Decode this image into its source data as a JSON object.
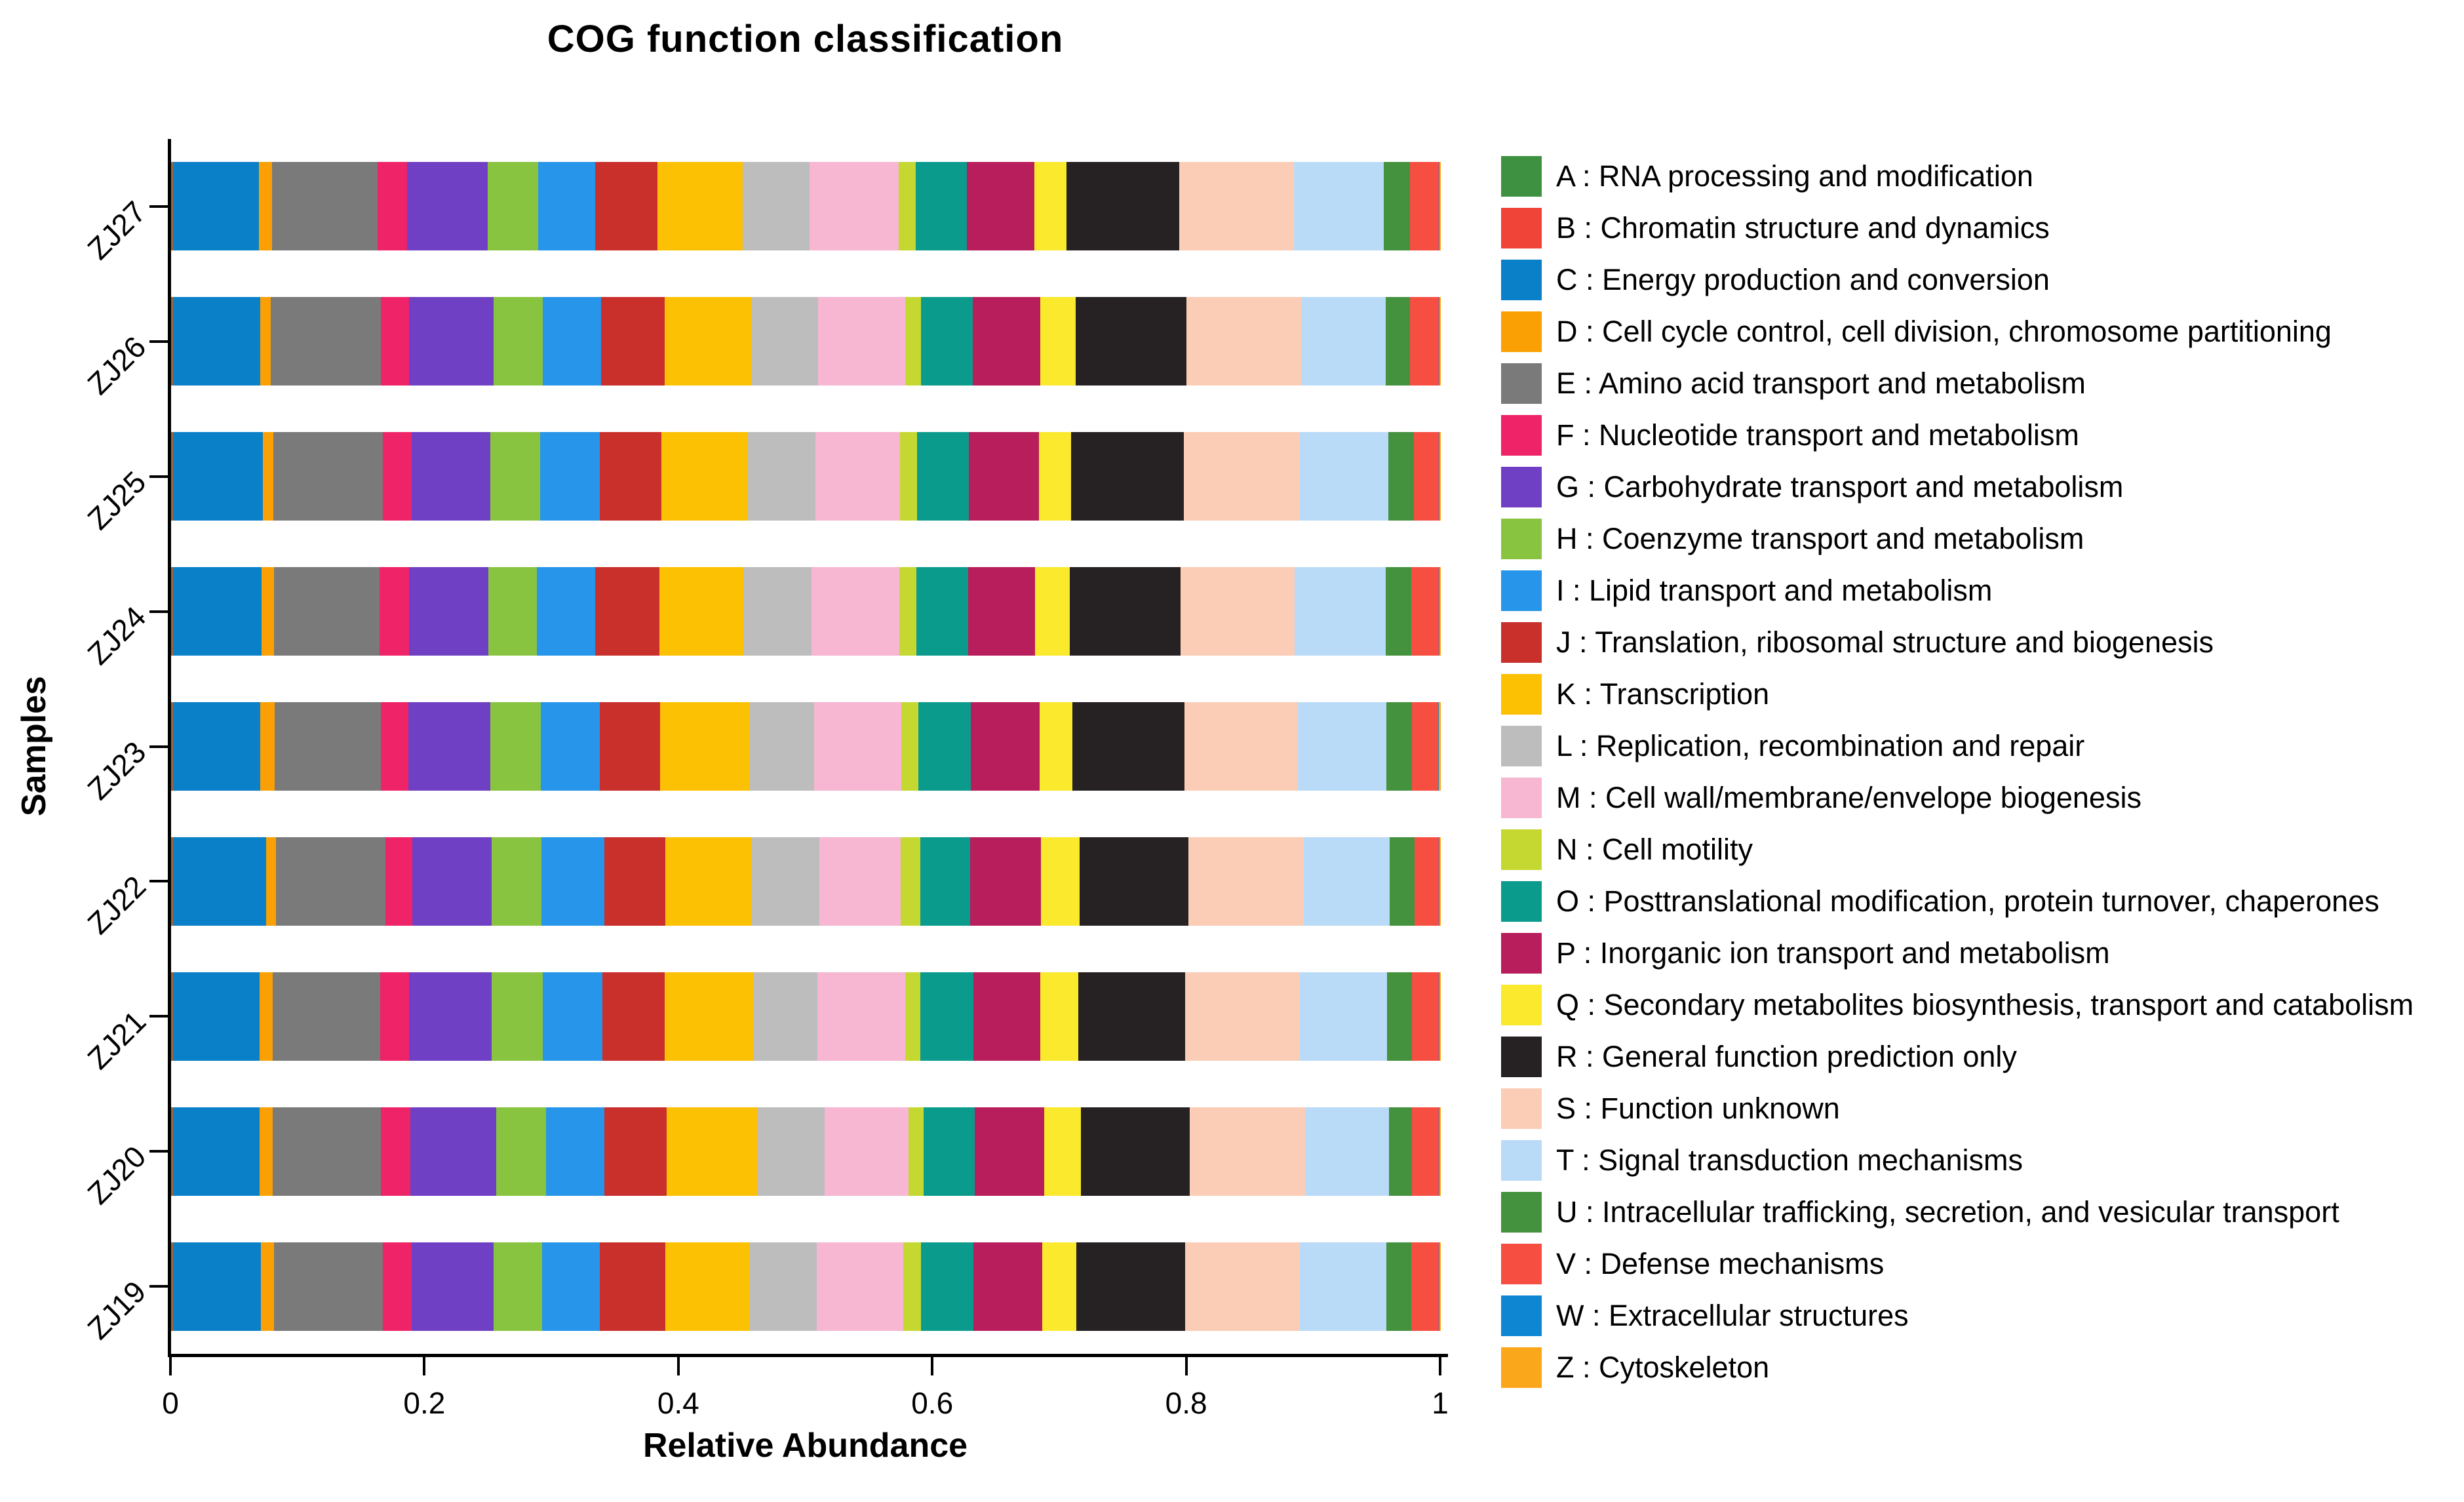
{
  "title": "COG function classification",
  "x_axis": {
    "label": "Relative Abundance",
    "range": [
      0,
      1
    ],
    "ticks": [
      {
        "label": "0",
        "value": 0.0
      },
      {
        "label": "0.2",
        "value": 0.2
      },
      {
        "label": "0.4",
        "value": 0.4
      },
      {
        "label": "0.6",
        "value": 0.6
      },
      {
        "label": "0.8",
        "value": 0.8
      },
      {
        "label": "1",
        "value": 1.0
      }
    ]
  },
  "y_axis": {
    "label": "Samples"
  },
  "categories": [
    {
      "code": "A",
      "name": "RNA processing and modification",
      "legend_label": "A : RNA processing and modification",
      "color": "#3f9142"
    },
    {
      "code": "B",
      "name": "Chromatin structure and dynamics",
      "legend_label": "B : Chromatin structure and dynamics",
      "color": "#f04438"
    },
    {
      "code": "C",
      "name": "Energy production and conversion",
      "legend_label": "C : Energy production and conversion",
      "color": "#0a80c9"
    },
    {
      "code": "D",
      "name": "Cell cycle control, cell division, chromosome partitioning",
      "legend_label": "D : Cell cycle control, cell division, chromosome partitioning",
      "color": "#faa005"
    },
    {
      "code": "E",
      "name": "Amino acid transport and metabolism",
      "legend_label": "E : Amino acid transport and metabolism",
      "color": "#7a7a7a"
    },
    {
      "code": "F",
      "name": "Nucleotide transport and metabolism",
      "legend_label": "F : Nucleotide transport and metabolism",
      "color": "#ee2368"
    },
    {
      "code": "G",
      "name": "Carbohydrate transport and metabolism",
      "legend_label": "G : Carbohydrate transport and metabolism",
      "color": "#7040c4"
    },
    {
      "code": "H",
      "name": "Coenzyme transport and metabolism",
      "legend_label": "H : Coenzyme transport and metabolism",
      "color": "#89c440"
    },
    {
      "code": "I",
      "name": "Lipid transport and metabolism",
      "legend_label": "I : Lipid transport and metabolism",
      "color": "#2795e9"
    },
    {
      "code": "J",
      "name": "Translation, ribosomal structure and biogenesis",
      "legend_label": "J : Translation, ribosomal structure and biogenesis",
      "color": "#c9302c"
    },
    {
      "code": "K",
      "name": "Transcription",
      "legend_label": "K : Transcription",
      "color": "#fdc104"
    },
    {
      "code": "L",
      "name": "Replication, recombination and repair",
      "legend_label": "L : Replication, recombination and repair",
      "color": "#bdbdbd"
    },
    {
      "code": "M",
      "name": "Cell wall/membrane/envelope biogenesis",
      "legend_label": "M : Cell wall/membrane/envelope biogenesis",
      "color": "#f7b6d2"
    },
    {
      "code": "N",
      "name": "Cell motility",
      "legend_label": "N : Cell motility",
      "color": "#c5d831"
    },
    {
      "code": "O",
      "name": "Posttranslational modification, protein turnover, chaperones",
      "legend_label": "O : Posttranslational modification, protein turnover, chaperones",
      "color": "#0b9b8d"
    },
    {
      "code": "P",
      "name": "Inorganic ion transport and metabolism",
      "legend_label": "P : Inorganic ion transport and metabolism",
      "color": "#b81e5b"
    },
    {
      "code": "Q",
      "name": "Secondary metabolites biosynthesis, transport and catabolism",
      "legend_label": "Q : Secondary metabolites biosynthesis, transport and catabolism",
      "color": "#fbe92e"
    },
    {
      "code": "R",
      "name": "General function prediction only",
      "legend_label": "R : General function prediction only",
      "color": "#262223"
    },
    {
      "code": "S",
      "name": "Function unknown",
      "legend_label": "S : Function unknown",
      "color": "#fccdb6"
    },
    {
      "code": "T",
      "name": "Signal transduction mechanisms",
      "legend_label": "T : Signal transduction mechanisms",
      "color": "#badbf7"
    },
    {
      "code": "U",
      "name": "Intracellular trafficking, secretion, and vesicular transport",
      "legend_label": "U : Intracellular trafficking, secretion, and vesicular transport",
      "color": "#44913e"
    },
    {
      "code": "V",
      "name": "Defense mechanisms",
      "legend_label": "V : Defense mechanisms",
      "color": "#f74e42"
    },
    {
      "code": "W",
      "name": "Extracellular structures",
      "legend_label": "W : Extracellular structures",
      "color": "#0f86d2"
    },
    {
      "code": "Z",
      "name": "Cytoskeleton",
      "legend_label": "Z : Cytoskeleton",
      "color": "#faa71b"
    }
  ],
  "chart_data": {
    "type": "bar",
    "stacked": true,
    "orientation": "horizontal",
    "title": "COG function classification",
    "xlabel": "Relative Abundance",
    "ylabel": "Samples",
    "xlim": [
      0,
      1
    ],
    "grid": false,
    "legend_position": "right",
    "samples": [
      "ZJ27",
      "ZJ26",
      "ZJ25",
      "ZJ24",
      "ZJ23",
      "ZJ22",
      "ZJ21",
      "ZJ20",
      "ZJ19"
    ],
    "series": [
      {
        "code": "A",
        "values": [
          0.001,
          0.001,
          0.001,
          0.001,
          0.001,
          0.001,
          0.001,
          0.001,
          0.001
        ]
      },
      {
        "code": "B",
        "values": [
          0.0005,
          0.0005,
          0.0005,
          0.0005,
          0.0005,
          0.0005,
          0.0005,
          0.0005,
          0.0005
        ]
      },
      {
        "code": "C",
        "values": [
          0.0677,
          0.0687,
          0.0708,
          0.0697,
          0.0687,
          0.0734,
          0.0682,
          0.0682,
          0.0692
        ]
      },
      {
        "code": "D",
        "values": [
          0.0103,
          0.0083,
          0.0082,
          0.0098,
          0.0114,
          0.0077,
          0.0103,
          0.0103,
          0.0103
        ]
      },
      {
        "code": "E",
        "values": [
          0.0831,
          0.0867,
          0.0862,
          0.0832,
          0.0836,
          0.0862,
          0.0847,
          0.0852,
          0.0857
        ]
      },
      {
        "code": "F",
        "values": [
          0.0233,
          0.0222,
          0.0228,
          0.0232,
          0.0217,
          0.0212,
          0.0227,
          0.0232,
          0.0228
        ]
      },
      {
        "code": "G",
        "values": [
          0.0635,
          0.0666,
          0.0619,
          0.0625,
          0.0645,
          0.0624,
          0.065,
          0.0676,
          0.0645
        ]
      },
      {
        "code": "H",
        "values": [
          0.0397,
          0.0387,
          0.0393,
          0.0382,
          0.0393,
          0.0393,
          0.0403,
          0.0393,
          0.0382
        ]
      },
      {
        "code": "I",
        "values": [
          0.0449,
          0.046,
          0.0469,
          0.0459,
          0.0464,
          0.0496,
          0.047,
          0.046,
          0.0454
        ]
      },
      {
        "code": "J",
        "values": [
          0.0491,
          0.0501,
          0.0486,
          0.0506,
          0.0475,
          0.048,
          0.0491,
          0.049,
          0.0517
        ]
      },
      {
        "code": "K",
        "values": [
          0.0671,
          0.0686,
          0.0681,
          0.0661,
          0.0702,
          0.0681,
          0.0696,
          0.0712,
          0.066
        ]
      },
      {
        "code": "L",
        "values": [
          0.0527,
          0.0522,
          0.0532,
          0.0537,
          0.0512,
          0.0532,
          0.0506,
          0.0532,
          0.0532
        ]
      },
      {
        "code": "M",
        "values": [
          0.0697,
          0.0686,
          0.0661,
          0.0687,
          0.0686,
          0.064,
          0.0692,
          0.0661,
          0.0681
        ]
      },
      {
        "code": "N",
        "values": [
          0.0134,
          0.0124,
          0.0134,
          0.0139,
          0.0134,
          0.015,
          0.0119,
          0.0119,
          0.014
        ]
      },
      {
        "code": "O",
        "values": [
          0.0403,
          0.0408,
          0.0408,
          0.0403,
          0.0413,
          0.0397,
          0.0413,
          0.0403,
          0.0408
        ]
      },
      {
        "code": "P",
        "values": [
          0.0531,
          0.0532,
          0.0552,
          0.0531,
          0.0543,
          0.0553,
          0.0527,
          0.0547,
          0.0542
        ]
      },
      {
        "code": "Q",
        "values": [
          0.0258,
          0.0279,
          0.0253,
          0.0269,
          0.0258,
          0.0304,
          0.0299,
          0.0289,
          0.0269
        ]
      },
      {
        "code": "R",
        "values": [
          0.0883,
          0.0872,
          0.0889,
          0.0873,
          0.0878,
          0.0857,
          0.0842,
          0.0857,
          0.0857
        ]
      },
      {
        "code": "S",
        "values": [
          0.0904,
          0.0904,
          0.0913,
          0.0898,
          0.0893,
          0.0909,
          0.0903,
          0.0909,
          0.0903
        ]
      },
      {
        "code": "T",
        "values": [
          0.0707,
          0.0666,
          0.0697,
          0.0717,
          0.0696,
          0.0676,
          0.0687,
          0.066,
          0.0682
        ]
      },
      {
        "code": "U",
        "values": [
          0.0206,
          0.0191,
          0.0201,
          0.0202,
          0.0202,
          0.0196,
          0.0196,
          0.0181,
          0.0196
        ]
      },
      {
        "code": "V",
        "values": [
          0.0228,
          0.0227,
          0.0197,
          0.0217,
          0.0207,
          0.0192,
          0.0212,
          0.0212,
          0.0217
        ]
      },
      {
        "code": "W",
        "values": [
          0.0005,
          0.0005,
          0.0005,
          0.0005,
          0.0005,
          0.0005,
          0.0005,
          0.0005,
          0.0005
        ]
      },
      {
        "code": "Z",
        "values": [
          0.001,
          0.001,
          0.001,
          0.001,
          0.0015,
          0.001,
          0.001,
          0.001,
          0.001
        ]
      }
    ]
  }
}
